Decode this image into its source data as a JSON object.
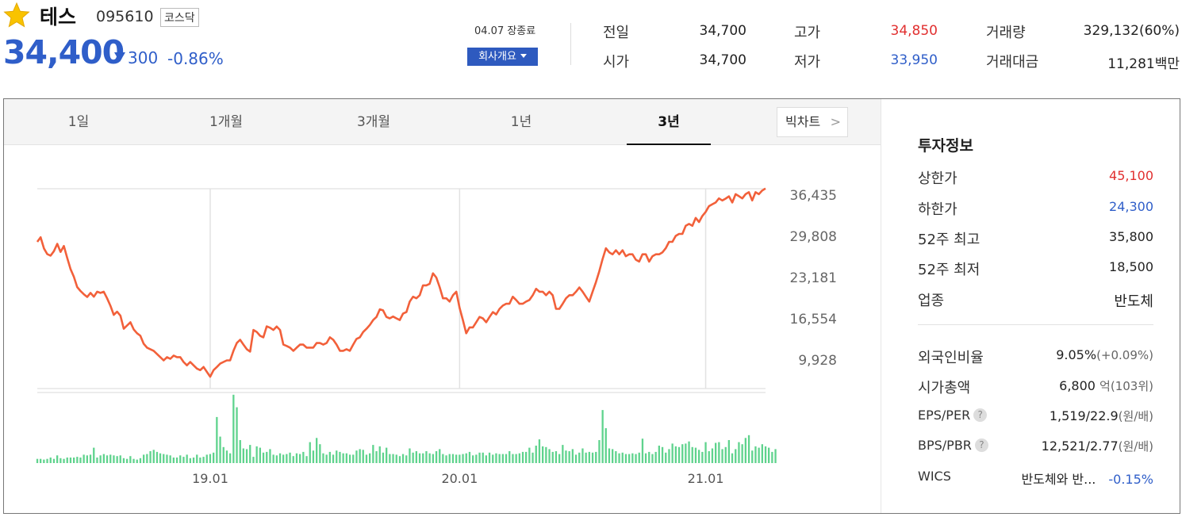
{
  "stock": {
    "name": "테스",
    "code": "095610",
    "market": "코스닥",
    "price": "34,400",
    "change": "300",
    "change_pct": "-0.86%",
    "direction": "down",
    "status": "04.07 장종료",
    "company_btn": "회사개요"
  },
  "quote": {
    "prev_label": "전일",
    "prev": "34,700",
    "open_label": "시가",
    "open": "34,700",
    "high_label": "고가",
    "high": "34,850",
    "low_label": "저가",
    "low": "33,950",
    "volume_label": "거래량",
    "volume": "329,132(60%)",
    "value_label": "거래대금",
    "value": "11,281",
    "value_unit": "백만"
  },
  "tabs": [
    "1일",
    "1개월",
    "3개월",
    "1년",
    "3년"
  ],
  "active_tab": "3년",
  "bigchart_label": "빅차트",
  "colors": {
    "up": "#e12f2f",
    "down": "#2f5ec9",
    "line": "#f2603a",
    "volume": "#5fd38d"
  },
  "chart_data": {
    "type": "line",
    "y_ticks": [
      "36,435",
      "29,808",
      "23,181",
      "16,554",
      "9,928"
    ],
    "ylim": [
      6100,
      38400
    ],
    "x_ticks": [
      "19.01",
      "20.01",
      "21.01"
    ],
    "x_tick_index": [
      52,
      127,
      201
    ],
    "values": [
      29808,
      30560,
      28750,
      27830,
      27580,
      28310,
      29490,
      28180,
      29150,
      27220,
      25420,
      24170,
      22510,
      21860,
      21340,
      20910,
      21560,
      20940,
      21750,
      21560,
      21750,
      20680,
      19480,
      18010,
      18520,
      17880,
      15760,
      16290,
      16820,
      15650,
      15030,
      14640,
      13340,
      12720,
      12460,
      12200,
      11690,
      11170,
      10650,
      11170,
      10910,
      11430,
      11170,
      11170,
      10390,
      9850,
      10390,
      9850,
      9330,
      9070,
      9590,
      8790,
      8010,
      9070,
      9590,
      10130,
      10390,
      10650,
      10650,
      12200,
      13460,
      13980,
      13200,
      12460,
      12070,
      15570,
      15240,
      14640,
      14380,
      16150,
      15930,
      15570,
      16120,
      15570,
      13200,
      12980,
      12720,
      12200,
      12720,
      13200,
      13200,
      12720,
      12720,
      12720,
      13460,
      13460,
      13200,
      13460,
      14380,
      13980,
      13200,
      12200,
      12200,
      12460,
      12200,
      13200,
      14120,
      14380,
      15240,
      15770,
      16380,
      17180,
      17680,
      18910,
      18740,
      17680,
      17440,
      17740,
      17440,
      17180,
      18230,
      18450,
      20160,
      20940,
      20680,
      21190,
      22770,
      22770,
      23030,
      24730,
      24040,
      22510,
      20690,
      20690,
      20160,
      21190,
      21750,
      19110,
      17180,
      15030,
      15980,
      15980,
      16810,
      17680,
      17440,
      16810,
      17680,
      18450,
      18090,
      18980,
      19510,
      19800,
      19800,
      20940,
      20420,
      19800,
      19800,
      20160,
      20420,
      21190,
      22220,
      21750,
      21750,
      21190,
      21750,
      21190,
      18980,
      18980,
      19800,
      20680,
      21190,
      21190,
      21750,
      22440,
      21750,
      20940,
      20160,
      21750,
      23290,
      25040,
      27030,
      28780,
      28120,
      27800,
      28450,
      27800,
      28450,
      27490,
      27800,
      27800,
      26930,
      26620,
      27800,
      27800,
      26620,
      27490,
      27800,
      27800,
      28120,
      28780,
      29810,
      29810,
      30770,
      31100,
      31100,
      32400,
      32710,
      32400,
      33680,
      33020,
      34000,
      34640,
      35580,
      35890,
      36170,
      36840,
      36500,
      36800,
      37170,
      36170,
      37510,
      37200,
      36840,
      37510,
      37830,
      36500,
      37830,
      37510,
      38110,
      38440
    ],
    "volume_rel": [
      0.06,
      0.06,
      0.05,
      0.06,
      0.08,
      0.06,
      0.11,
      0.07,
      0.06,
      0.08,
      0.08,
      0.08,
      0.09,
      0.08,
      0.12,
      0.11,
      0.12,
      0.22,
      0.08,
      0.11,
      0.13,
      0.11,
      0.12,
      0.11,
      0.1,
      0.11,
      0.07,
      0.06,
      0.1,
      0.06,
      0.05,
      0.07,
      0.12,
      0.13,
      0.17,
      0.19,
      0.16,
      0.14,
      0.13,
      0.12,
      0.11,
      0.08,
      0.08,
      0.11,
      0.09,
      0.12,
      0.07,
      0.08,
      0.12,
      0.08,
      0.09,
      0.12,
      0.13,
      0.15,
      0.66,
      0.38,
      0.23,
      0.18,
      0.14,
      0.98,
      0.8,
      0.33,
      0.21,
      0.2,
      0.26,
      0.09,
      0.24,
      0.22,
      0.15,
      0.16,
      0.2,
      0.12,
      0.11,
      0.14,
      0.12,
      0.13,
      0.15,
      0.1,
      0.14,
      0.13,
      0.16,
      0.1,
      0.3,
      0.18,
      0.36,
      0.27,
      0.14,
      0.12,
      0.16,
      0.12,
      0.18,
      0.16,
      0.14,
      0.14,
      0.12,
      0.12,
      0.18,
      0.2,
      0.19,
      0.12,
      0.14,
      0.26,
      0.17,
      0.24,
      0.15,
      0.22,
      0.13,
      0.13,
      0.12,
      0.1,
      0.13,
      0.11,
      0.21,
      0.15,
      0.17,
      0.14,
      0.14,
      0.17,
      0.14,
      0.13,
      0.17,
      0.2,
      0.13,
      0.11,
      0.13,
      0.13,
      0.12,
      0.12,
      0.13,
      0.14,
      0.16,
      0.11,
      0.12,
      0.15,
      0.15,
      0.11,
      0.15,
      0.12,
      0.14,
      0.13,
      0.13,
      0.13,
      0.17,
      0.13,
      0.13,
      0.14,
      0.16,
      0.16,
      0.22,
      0.15,
      0.25,
      0.34,
      0.24,
      0.23,
      0.2,
      0.16,
      0.17,
      0.13,
      0.26,
      0.18,
      0.17,
      0.2,
      0.12,
      0.15,
      0.21,
      0.15,
      0.16,
      0.15,
      0.16,
      0.33,
      0.76,
      0.5,
      0.21,
      0.2,
      0.17,
      0.14,
      0.15,
      0.13,
      0.13,
      0.14,
      0.13,
      0.15,
      0.35,
      0.14,
      0.16,
      0.13,
      0.16,
      0.25,
      0.23,
      0.15,
      0.2,
      0.28,
      0.24,
      0.23,
      0.27,
      0.28,
      0.31,
      0.23,
      0.22,
      0.19,
      0.16,
      0.3,
      0.17,
      0.21,
      0.29,
      0.3,
      0.2,
      0.23,
      0.33,
      0.14,
      0.2,
      0.3,
      0.27,
      0.36,
      0.4,
      0.18,
      0.24,
      0.22,
      0.27,
      0.24,
      0.22,
      0.16,
      0.2
    ]
  },
  "invest": {
    "title": "투자정보",
    "upper_label": "상한가",
    "upper": "45,100",
    "lower_label": "하한가",
    "lower": "24,300",
    "high52_label": "52주 최고",
    "high52": "35,800",
    "low52_label": "52주 최저",
    "low52": "18,500",
    "sector_label": "업종",
    "sector": "반도체",
    "foreign_label": "외국인비율",
    "foreign": "9.05%",
    "foreign_chg": "(+0.09%)",
    "cap_label": "시가총액",
    "cap": "6,800",
    "cap_unit": "억",
    "cap_rank": "(103위)",
    "eps_label": "EPS/PER",
    "eps": "1,519/22.9",
    "eps_unit": "(원/배)",
    "bps_label": "BPS/PBR",
    "bps": "12,521/2.77",
    "bps_unit": "(원/배)",
    "help_mark": "?",
    "wics_label": "WICS",
    "wics_name": "반도체와 반...",
    "wics_chg": "-0.15%"
  }
}
